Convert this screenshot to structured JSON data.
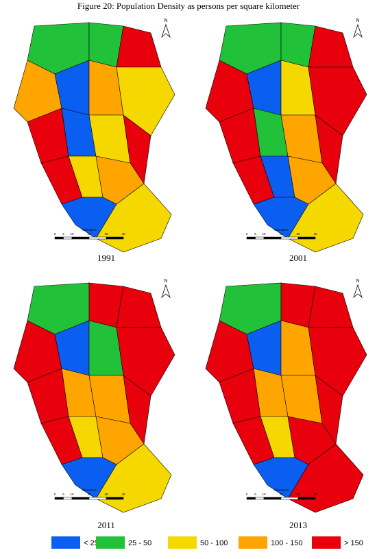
{
  "title": "Figure 20: Population Density as persons per square kilometer",
  "panels": [
    {
      "label": "1991"
    },
    {
      "label": "2001"
    },
    {
      "label": "2011"
    },
    {
      "label": "2013"
    }
  ],
  "north": "N",
  "scale": {
    "title": "Kilometers",
    "ticks": [
      0,
      5,
      10,
      20,
      30,
      40
    ]
  },
  "legend": [
    {
      "label": "< 25",
      "color": "#0a5ff0"
    },
    {
      "label": "25 - 50",
      "color": "#22c13a"
    },
    {
      "label": "50 - 100",
      "color": "#f5d800"
    },
    {
      "label": "100 - 150",
      "color": "#ffa500"
    },
    {
      "label": "> 150",
      "color": "#e8000c"
    }
  ]
}
